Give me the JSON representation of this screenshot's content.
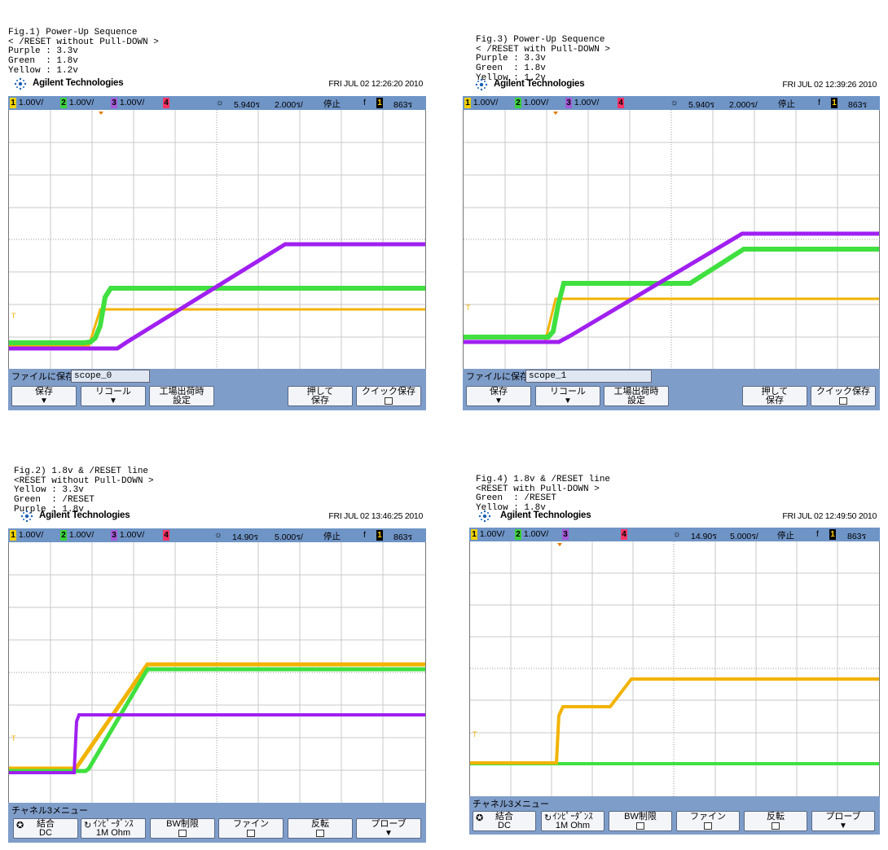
{
  "panels": [
    {
      "id": "fig1",
      "caption": [
        "Fig.1) Power-Up Sequence",
        "< /RESET without Pull-DOWN >",
        "Purple : 3.3v",
        "Green  : 1.8v",
        "Yellow : 1.2v"
      ],
      "brand": "Agilent Technologies",
      "datetime": "FRI JUL 02 12:26:20 2010",
      "status": {
        "ch1": "1.00V/",
        "ch2": "1.00V/",
        "ch3": "1.00V/",
        "delay": "5.940ร",
        "timebase": "2.000ร/",
        "run": "停止",
        "trigger_slope": "f",
        "trigger_level": "863ร"
      },
      "menu_title": "ファイルに保存 =",
      "filename": "scope_0",
      "keys": [
        {
          "label": "保存",
          "arrow": "▼"
        },
        {
          "label": "リコール",
          "arrow": "▼"
        },
        {
          "label": "工場出荷時",
          "label2": "設定"
        },
        {
          "label": "押して",
          "label2": "保存"
        },
        {
          "label": "クイック保存",
          "box": true
        }
      ]
    },
    {
      "id": "fig3",
      "caption": [
        "Fig.3) Power-Up Sequence",
        "< /RESET with Pull-DOWN >",
        "Purple : 3.3v",
        "Green  : 1.8v",
        "Yellow : 1.2v"
      ],
      "brand": "Agilent Technologies",
      "datetime": "FRI JUL 02 12:39:26 2010",
      "status": {
        "ch1": "1.00V/",
        "ch2": "1.00V/",
        "ch3": "1.00V/",
        "delay": "5.940ร",
        "timebase": "2.000ร/",
        "run": "停止",
        "trigger_slope": "f",
        "trigger_level": "863ร"
      },
      "menu_title": "ファイルに保存 =",
      "filename": "scope_1",
      "keys": [
        {
          "label": "保存",
          "arrow": "▼"
        },
        {
          "label": "リコール",
          "arrow": "▼"
        },
        {
          "label": "工場出荷時",
          "label2": "設定"
        },
        {
          "label": "押して",
          "label2": "保存"
        },
        {
          "label": "クイック保存",
          "box": true
        }
      ]
    },
    {
      "id": "fig2",
      "caption": [
        "Fig.2) 1.8v & /RESET line",
        "<RESET without Pull-DOWN >",
        "Yellow : 3.3v",
        "Green  : /RESET",
        "Purple : 1.8v"
      ],
      "brand": "Agilent Technologies",
      "datetime": "FRI JUL 02 13:46:25 2010",
      "status": {
        "ch1": "1.00V/",
        "ch2": "1.00V/",
        "ch3": "1.00V/",
        "delay": "14.90ร",
        "timebase": "5.000ร/",
        "run": "停止",
        "trigger_slope": "f",
        "trigger_level": "863ร"
      },
      "menu_title": "チャネル3メニュー",
      "keys": [
        {
          "label": "結合",
          "label2": "DC",
          "knob": true
        },
        {
          "label": "ｲﾝﾋﾟｰﾀﾞﾝｽ",
          "label2": "1M Ohm",
          "knob": true
        },
        {
          "label": "BW制限",
          "box": true
        },
        {
          "label": "ファイン",
          "box": true
        },
        {
          "label": "反転",
          "box": true
        },
        {
          "label": "プローブ",
          "arrow": "▼"
        }
      ]
    },
    {
      "id": "fig4",
      "caption": [
        "Fig.4) 1.8v & /RESET line",
        "<RESET with Pull-DOWN >",
        "Green  : /RESET",
        "Yellow : 1.8v"
      ],
      "brand": "Agilent Technologies",
      "datetime": "FRI JUL 02 12:49:50 2010",
      "status": {
        "ch1": "1.00V/",
        "ch2": "1.00V/",
        "ch3": "",
        "delay": "14.90ร",
        "timebase": "5.000ร/",
        "run": "停止",
        "trigger_slope": "f",
        "trigger_level": "863ร"
      },
      "menu_title": "チャネル3メニュー",
      "keys": [
        {
          "label": "結合",
          "label2": "DC",
          "knob": true
        },
        {
          "label": "ｲﾝﾋﾟｰﾀﾞﾝｽ",
          "label2": "1M Ohm",
          "knob": true
        },
        {
          "label": "BW制限",
          "box": true
        },
        {
          "label": "ファイン",
          "box": true
        },
        {
          "label": "反転",
          "box": true
        },
        {
          "label": "プローブ",
          "arrow": "▼"
        }
      ]
    }
  ],
  "trace_colors": {
    "purple": "#a020f0",
    "green": "#3fe03f",
    "yellow": "#f2b300"
  }
}
